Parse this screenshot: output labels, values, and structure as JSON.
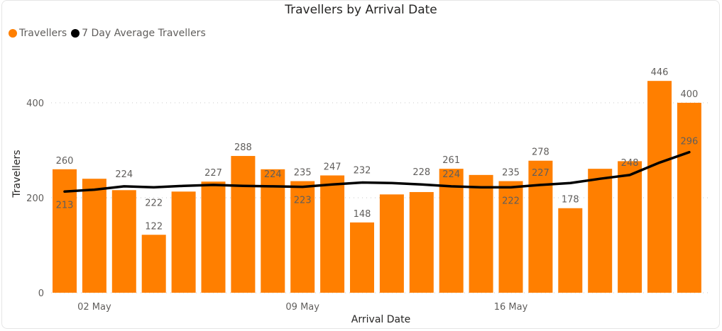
{
  "title": "Travellers by Arrival Date",
  "legend": [
    {
      "label": "Travellers",
      "color": "#ff7f00"
    },
    {
      "label": "7 Day Average Travellers",
      "color": "#000000"
    }
  ],
  "axes": {
    "ylabel": "Travellers",
    "xlabel": "Arrival Date",
    "yticks": [
      "0",
      "200",
      "400"
    ],
    "xticks": [
      "02 May",
      "09 May",
      "16 May"
    ]
  },
  "chart_data": {
    "type": "bar",
    "title": "Travellers by Arrival Date",
    "xlabel": "Arrival Date",
    "ylabel": "Travellers",
    "ylim": [
      0,
      480
    ],
    "grid": true,
    "legend_position": "top-left",
    "categories": [
      "01 May",
      "02 May",
      "03 May",
      "04 May",
      "05 May",
      "06 May",
      "07 May",
      "08 May",
      "09 May",
      "10 May",
      "11 May",
      "12 May",
      "13 May",
      "14 May",
      "15 May",
      "16 May",
      "17 May",
      "18 May",
      "19 May",
      "20 May",
      "21 May",
      "22 May"
    ],
    "x_tick_labels": [
      "02 May",
      "09 May",
      "16 May"
    ],
    "series": [
      {
        "name": "Travellers",
        "type": "bar",
        "color": "#ff7f00",
        "values": [
          260,
          240,
          216,
          122,
          213,
          234,
          288,
          260,
          235,
          247,
          148,
          207,
          212,
          261,
          248,
          235,
          278,
          178,
          261,
          277,
          446,
          400
        ],
        "labels": [
          "260",
          "",
          "",
          "122",
          "",
          "",
          "288",
          "",
          "235",
          "247",
          "148",
          "",
          "",
          "261",
          "",
          "235",
          "278",
          "178",
          "",
          "",
          "446",
          "400"
        ]
      },
      {
        "name": "7 Day Average Travellers",
        "type": "line",
        "color": "#000000",
        "values": [
          213,
          217,
          224,
          222,
          225,
          227,
          225,
          224,
          223,
          228,
          232,
          231,
          228,
          224,
          222,
          222,
          227,
          231,
          240,
          248,
          274,
          296
        ],
        "labels": [
          "213",
          "",
          "224",
          "222",
          "",
          "227",
          "",
          "224",
          "223",
          "",
          "232",
          "",
          "228",
          "224",
          "",
          "222",
          "227",
          "",
          "",
          "248",
          "",
          "296"
        ]
      }
    ]
  }
}
